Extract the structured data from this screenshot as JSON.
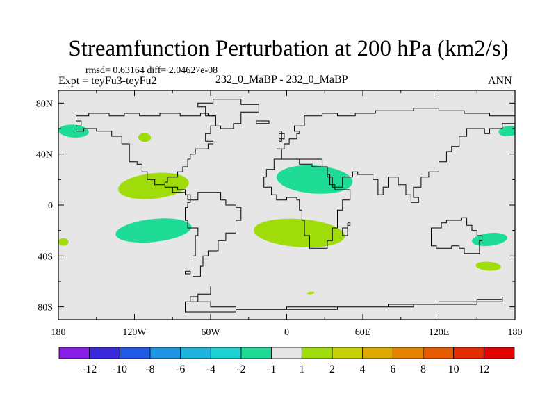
{
  "title": "Streamfunction Perturbation at 200 hPa (km2/s)",
  "stats": "rmsd= 0.63164 diff= 2.04627e-08",
  "experiment": "Expt = teyFu3-teyFu2",
  "case_label": "232_0_MaBP - 232_0_MaBP",
  "season": "ANN",
  "chart_data": {
    "type": "contour-map",
    "projection": "cylindrical equidistant",
    "variable": "200 hPa streamfunction perturbation",
    "units": "km2/s",
    "xlim": [
      -180,
      180
    ],
    "ylim": [
      -90,
      90
    ],
    "x_ticks": [
      {
        "value": -180,
        "label": "180"
      },
      {
        "value": -120,
        "label": "120W"
      },
      {
        "value": -60,
        "label": "60W"
      },
      {
        "value": 0,
        "label": "0"
      },
      {
        "value": 60,
        "label": "60E"
      },
      {
        "value": 120,
        "label": "120E"
      },
      {
        "value": 180,
        "label": "180"
      }
    ],
    "y_ticks": [
      {
        "value": 80,
        "label": "80N"
      },
      {
        "value": 40,
        "label": "40N"
      },
      {
        "value": 0,
        "label": "0"
      },
      {
        "value": -40,
        "label": "40S"
      },
      {
        "value": -80,
        "label": "80S"
      }
    ],
    "background_color": "#e6e6e6",
    "colorbar": {
      "labels": [
        "-12",
        "-10",
        "-8",
        "-6",
        "-4",
        "-2",
        "-1",
        "1",
        "2",
        "4",
        "6",
        "8",
        "10",
        "12"
      ],
      "colors": [
        "#8a1ee6",
        "#3a28dc",
        "#1e5ae6",
        "#1e96e6",
        "#1eb4dc",
        "#1ed2d2",
        "#1edc96",
        "#e6e6e6",
        "#a0dc0a",
        "#c8d200",
        "#dcaa00",
        "#e68200",
        "#e65a00",
        "#e62d00",
        "#e60000"
      ]
    },
    "anomalies": [
      {
        "lon": -168,
        "lat": 58,
        "rx": 12,
        "ry": 5,
        "value": -1.5,
        "color": "#1edc96"
      },
      {
        "lon": 175,
        "lat": 58,
        "rx": 8,
        "ry": 4,
        "value": -1.5,
        "color": "#1edc96"
      },
      {
        "lon": -112,
        "lat": 53,
        "rx": 5,
        "ry": 3.5,
        "value": 1.5,
        "color": "#a0dc0a"
      },
      {
        "lon": -105,
        "lat": 15,
        "rx": 28,
        "ry": 10,
        "value": 1.5,
        "color": "#a0dc0a"
      },
      {
        "lon": 22,
        "lat": 20,
        "rx": 30,
        "ry": 11,
        "value": -1.5,
        "color": "#1edc96"
      },
      {
        "lon": -105,
        "lat": -20,
        "rx": 30,
        "ry": 9,
        "value": -1.5,
        "color": "#1edc96"
      },
      {
        "lon": 10,
        "lat": -22,
        "rx": 36,
        "ry": 11,
        "value": 1.5,
        "color": "#a0dc0a"
      },
      {
        "lon": 19,
        "lat": -69,
        "rx": 3,
        "ry": 1,
        "value": 1.5,
        "color": "#a0dc0a"
      },
      {
        "lon": -176,
        "lat": -29,
        "rx": 4,
        "ry": 3,
        "value": 1.5,
        "color": "#a0dc0a"
      },
      {
        "lon": 160,
        "lat": -27,
        "rx": 14,
        "ry": 5,
        "value": -1.5,
        "color": "#1edc96"
      },
      {
        "lon": 159,
        "lat": -48,
        "rx": 10,
        "ry": 3.5,
        "value": 1.5,
        "color": "#a0dc0a"
      }
    ],
    "coastlines": [
      [
        [
          -58,
          83
        ],
        [
          -36,
          83
        ],
        [
          -36,
          79
        ],
        [
          -22,
          79
        ],
        [
          -22,
          73
        ],
        [
          -36,
          70
        ],
        [
          -36,
          64
        ],
        [
          -42,
          60
        ],
        [
          -52,
          62
        ],
        [
          -56,
          70
        ],
        [
          -64,
          77
        ],
        [
          -70,
          80
        ],
        [
          -58,
          83
        ]
      ],
      [
        [
          -68,
          72
        ],
        [
          -62,
          70
        ],
        [
          -56,
          62
        ],
        [
          -60,
          56
        ],
        [
          -64,
          50
        ],
        [
          -58,
          48
        ],
        [
          -62,
          44
        ],
        [
          -72,
          40
        ],
        [
          -76,
          36
        ],
        [
          -78,
          30
        ],
        [
          -82,
          26
        ],
        [
          -86,
          22
        ],
        [
          -94,
          18
        ],
        [
          -96,
          14
        ],
        [
          -86,
          12
        ],
        [
          -80,
          8
        ],
        [
          -78,
          4
        ],
        [
          -70,
          10
        ],
        [
          -62,
          10
        ],
        [
          -52,
          4
        ],
        [
          -48,
          0
        ],
        [
          -40,
          -2
        ],
        [
          -36,
          -6
        ],
        [
          -36,
          -12
        ],
        [
          -40,
          -22
        ],
        [
          -48,
          -28
        ],
        [
          -54,
          -36
        ],
        [
          -62,
          -40
        ],
        [
          -66,
          -48
        ],
        [
          -68,
          -56
        ],
        [
          -74,
          -52
        ],
        [
          -74,
          -40
        ],
        [
          -72,
          -24
        ],
        [
          -70,
          -18
        ],
        [
          -78,
          -12
        ],
        [
          -80,
          -2
        ],
        [
          -78,
          2
        ],
        [
          -76,
          8
        ],
        [
          -80,
          10
        ],
        [
          -90,
          14
        ],
        [
          -96,
          16
        ],
        [
          -104,
          20
        ],
        [
          -110,
          26
        ],
        [
          -114,
          32
        ],
        [
          -118,
          34
        ],
        [
          -124,
          40
        ],
        [
          -124,
          48
        ],
        [
          -130,
          54
        ],
        [
          -138,
          58
        ],
        [
          -150,
          60
        ],
        [
          -160,
          58
        ],
        [
          -166,
          62
        ],
        [
          -162,
          66
        ],
        [
          -166,
          70
        ],
        [
          -156,
          72
        ],
        [
          -140,
          70
        ],
        [
          -128,
          72
        ],
        [
          -116,
          70
        ],
        [
          -100,
          72
        ],
        [
          -84,
          70
        ],
        [
          -74,
          70
        ],
        [
          -68,
          72
        ]
      ],
      [
        [
          -10,
          36
        ],
        [
          -4,
          44
        ],
        [
          -8,
          44
        ],
        [
          -2,
          48
        ],
        [
          2,
          52
        ],
        [
          8,
          56
        ],
        [
          10,
          58
        ],
        [
          6,
          62
        ],
        [
          14,
          70
        ],
        [
          28,
          72
        ],
        [
          40,
          70
        ],
        [
          54,
          72
        ],
        [
          70,
          74
        ],
        [
          100,
          76
        ],
        [
          120,
          74
        ],
        [
          140,
          72
        ],
        [
          160,
          70
        ],
        [
          180,
          68
        ],
        [
          180,
          64
        ],
        [
          170,
          60
        ],
        [
          160,
          56
        ],
        [
          156,
          60
        ],
        [
          142,
          54
        ],
        [
          136,
          46
        ],
        [
          130,
          42
        ],
        [
          126,
          34
        ],
        [
          120,
          26
        ],
        [
          112,
          22
        ],
        [
          106,
          14
        ],
        [
          100,
          6
        ],
        [
          104,
          2
        ],
        [
          98,
          8
        ],
        [
          94,
          16
        ],
        [
          88,
          22
        ],
        [
          80,
          14
        ],
        [
          76,
          8
        ],
        [
          72,
          20
        ],
        [
          68,
          24
        ],
        [
          60,
          24
        ],
        [
          56,
          26
        ],
        [
          52,
          22
        ],
        [
          44,
          14
        ],
        [
          42,
          14
        ],
        [
          36,
          22
        ],
        [
          32,
          30
        ],
        [
          28,
          36
        ],
        [
          20,
          36
        ],
        [
          12,
          36
        ],
        [
          0,
          36
        ],
        [
          -6,
          36
        ],
        [
          -10,
          36
        ]
      ],
      [
        [
          -10,
          36
        ],
        [
          -10,
          28
        ],
        [
          -16,
          22
        ],
        [
          -18,
          14
        ],
        [
          -12,
          8
        ],
        [
          -8,
          4
        ],
        [
          0,
          6
        ],
        [
          8,
          4
        ],
        [
          10,
          -4
        ],
        [
          12,
          -12
        ],
        [
          14,
          -24
        ],
        [
          18,
          -34
        ],
        [
          26,
          -34
        ],
        [
          32,
          -28
        ],
        [
          36,
          -18
        ],
        [
          40,
          -14
        ],
        [
          40,
          -4
        ],
        [
          44,
          4
        ],
        [
          50,
          12
        ],
        [
          44,
          12
        ],
        [
          38,
          16
        ],
        [
          34,
          24
        ],
        [
          32,
          30
        ],
        [
          20,
          32
        ],
        [
          10,
          36
        ],
        [
          -10,
          36
        ]
      ],
      [
        [
          48,
          -14
        ],
        [
          50,
          -16
        ],
        [
          48,
          -24
        ],
        [
          44,
          -24
        ],
        [
          44,
          -18
        ],
        [
          48,
          -14
        ]
      ],
      [
        [
          114,
          -22
        ],
        [
          114,
          -32
        ],
        [
          118,
          -34
        ],
        [
          124,
          -34
        ],
        [
          130,
          -32
        ],
        [
          136,
          -34
        ],
        [
          140,
          -38
        ],
        [
          148,
          -38
        ],
        [
          152,
          -28
        ],
        [
          154,
          -24
        ],
        [
          150,
          -20
        ],
        [
          146,
          -16
        ],
        [
          142,
          -10
        ],
        [
          138,
          -12
        ],
        [
          132,
          -12
        ],
        [
          126,
          -14
        ],
        [
          122,
          -18
        ],
        [
          114,
          -22
        ]
      ],
      [
        [
          -60,
          -64
        ],
        [
          -60,
          -70
        ],
        [
          -70,
          -72
        ],
        [
          -76,
          -76
        ],
        [
          -60,
          -80
        ],
        [
          -40,
          -82
        ],
        [
          0,
          -80
        ],
        [
          40,
          -80
        ],
        [
          80,
          -78
        ],
        [
          120,
          -76
        ],
        [
          150,
          -74
        ],
        [
          170,
          -72
        ],
        [
          170,
          -76
        ],
        [
          150,
          -78
        ],
        [
          100,
          -80
        ],
        [
          40,
          -82
        ],
        [
          -40,
          -84
        ],
        [
          -80,
          -82
        ],
        [
          -80,
          -76
        ],
        [
          -70,
          -70
        ],
        [
          -60,
          -64
        ]
      ],
      [
        [
          -6,
          50
        ],
        [
          -4,
          58
        ],
        [
          -6,
          56
        ],
        [
          -2,
          52
        ],
        [
          -6,
          50
        ]
      ],
      [
        [
          -24,
          64
        ],
        [
          -14,
          64
        ],
        [
          -14,
          66
        ],
        [
          -24,
          66
        ],
        [
          -24,
          64
        ]
      ],
      [
        [
          -80,
          -52
        ],
        [
          -76,
          -52
        ],
        [
          -76,
          -54
        ],
        [
          -80,
          -54
        ],
        [
          -80,
          -52
        ]
      ]
    ]
  }
}
